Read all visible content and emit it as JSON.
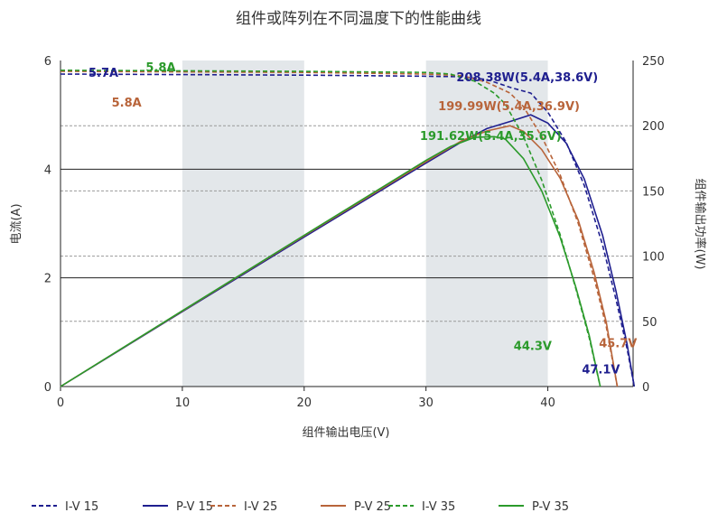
{
  "chart_data": {
    "type": "line",
    "title": "组件或阵列在不同温度下的性能曲线",
    "xlabel": "组件输出电压(V)",
    "ylabel_left": "电流(A)",
    "ylabel_right": "组件输出功率(W)",
    "xlim": [
      0,
      47
    ],
    "ylim_left": [
      0,
      6
    ],
    "ylim_right": [
      0,
      250
    ],
    "xticks": [
      "0",
      "10",
      "20",
      "30",
      "40"
    ],
    "yticks_left": [
      "0",
      "2",
      "4",
      "6"
    ],
    "yticks_right": [
      "0",
      "50",
      "100",
      "150",
      "200",
      "250"
    ],
    "shaded_x_bands": [
      [
        10,
        20
      ],
      [
        30,
        40
      ]
    ],
    "legend_position": "bottom",
    "series": [
      {
        "name": "I-V 15",
        "color": "#1f1f8f",
        "dash": true,
        "axis": "left",
        "points": [
          [
            0,
            5.75
          ],
          [
            10,
            5.74
          ],
          [
            20,
            5.73
          ],
          [
            30,
            5.71
          ],
          [
            33,
            5.7
          ],
          [
            35,
            5.65
          ],
          [
            37,
            5.5
          ],
          [
            38.6,
            5.4
          ],
          [
            40,
            5.05
          ],
          [
            41.5,
            4.5
          ],
          [
            43,
            3.7
          ],
          [
            44.5,
            2.6
          ],
          [
            45.6,
            1.6
          ],
          [
            46.5,
            0.7
          ],
          [
            47.1,
            0
          ]
        ]
      },
      {
        "name": "P-V 15",
        "color": "#1f1f8f",
        "dash": false,
        "axis": "right",
        "points": [
          [
            0,
            0
          ],
          [
            10,
            57.4
          ],
          [
            20,
            114.6
          ],
          [
            30,
            171.3
          ],
          [
            33,
            188.1
          ],
          [
            35,
            197.8
          ],
          [
            37,
            203.5
          ],
          [
            38.6,
            208.38
          ],
          [
            40,
            202
          ],
          [
            41.5,
            186.8
          ],
          [
            43,
            159.1
          ],
          [
            44.5,
            115.7
          ],
          [
            45.6,
            73
          ],
          [
            46.5,
            32.6
          ],
          [
            47.1,
            0
          ]
        ]
      },
      {
        "name": "I-V 25",
        "color": "#b8643a",
        "dash": true,
        "axis": "left",
        "points": [
          [
            0,
            5.8
          ],
          [
            10,
            5.79
          ],
          [
            20,
            5.78
          ],
          [
            30,
            5.75
          ],
          [
            33,
            5.72
          ],
          [
            35,
            5.6
          ],
          [
            36.9,
            5.4
          ],
          [
            38,
            5.15
          ],
          [
            39.5,
            4.6
          ],
          [
            41,
            3.9
          ],
          [
            42.5,
            3
          ],
          [
            43.8,
            2
          ],
          [
            44.8,
            1.1
          ],
          [
            45.7,
            0
          ]
        ]
      },
      {
        "name": "P-V 25",
        "color": "#b8643a",
        "dash": false,
        "axis": "right",
        "points": [
          [
            0,
            0
          ],
          [
            10,
            57.9
          ],
          [
            20,
            115.6
          ],
          [
            30,
            172.5
          ],
          [
            33,
            188.8
          ],
          [
            35,
            196
          ],
          [
            36.9,
            199.99
          ],
          [
            38,
            195.7
          ],
          [
            39.5,
            181.7
          ],
          [
            41,
            159.9
          ],
          [
            42.5,
            127.5
          ],
          [
            43.8,
            87.6
          ],
          [
            44.8,
            49.3
          ],
          [
            45.7,
            0
          ]
        ]
      },
      {
        "name": "I-V 35",
        "color": "#2b9a2b",
        "dash": true,
        "axis": "left",
        "points": [
          [
            0,
            5.82
          ],
          [
            10,
            5.81
          ],
          [
            20,
            5.8
          ],
          [
            30,
            5.78
          ],
          [
            32,
            5.75
          ],
          [
            34,
            5.62
          ],
          [
            35.6,
            5.4
          ],
          [
            36.5,
            5.2
          ],
          [
            38,
            4.6
          ],
          [
            39.5,
            3.8
          ],
          [
            41,
            2.8
          ],
          [
            42.3,
            1.8
          ],
          [
            43.4,
            0.9
          ],
          [
            44.3,
            0
          ]
        ]
      },
      {
        "name": "P-V 35",
        "color": "#2b9a2b",
        "dash": false,
        "axis": "right",
        "points": [
          [
            0,
            0
          ],
          [
            10,
            58.1
          ],
          [
            20,
            116
          ],
          [
            30,
            173.4
          ],
          [
            32,
            184
          ],
          [
            34,
            191.1
          ],
          [
            35.6,
            191.62
          ],
          [
            36.5,
            189.8
          ],
          [
            38,
            174.8
          ],
          [
            39.5,
            150.1
          ],
          [
            41,
            114.8
          ],
          [
            42.3,
            76.1
          ],
          [
            43.4,
            39.1
          ],
          [
            44.3,
            0
          ]
        ]
      }
    ],
    "annotations": [
      {
        "text": "5.7A",
        "color": "#1f1f8f",
        "x": 2.3,
        "y_left": 5.7
      },
      {
        "text": "5.8A",
        "color": "#2b9a2b",
        "x": 7,
        "y_left": 5.8
      },
      {
        "text": "5.8A",
        "color": "#b8643a",
        "x": 4.2,
        "y_left": 5.15
      },
      {
        "text": "208.38W(5.4A,38.6V)",
        "color": "#1f1f8f",
        "x": 32.5,
        "y_right": 234
      },
      {
        "text": "199.99W(5.4A,36.9V)",
        "color": "#b8643a",
        "x": 31,
        "y_right": 212
      },
      {
        "text": "191.62W(5.4A,35.6V)",
        "color": "#2b9a2b",
        "x": 29.5,
        "y_right": 189
      },
      {
        "text": "44.3V",
        "color": "#2b9a2b",
        "x": 37.2,
        "y_right": 28
      },
      {
        "text": "45.7V",
        "color": "#b8643a",
        "x": 44.2,
        "y_right": 30
      },
      {
        "text": "47.1V",
        "color": "#1f1f8f",
        "x": 42.8,
        "y_right": 10
      }
    ]
  }
}
